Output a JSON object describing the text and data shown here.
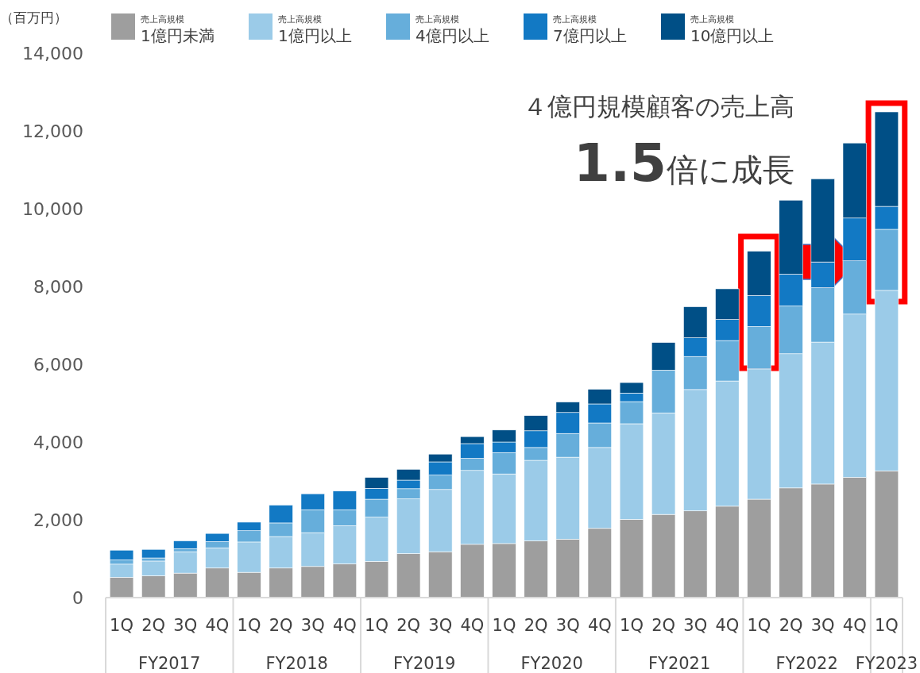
{
  "chart_data": {
    "type": "bar",
    "stacked": true,
    "legend": "top",
    "ylabel": "（百万円）",
    "categories": [
      "1Q",
      "2Q",
      "3Q",
      "4Q",
      "1Q",
      "2Q",
      "3Q",
      "4Q",
      "1Q",
      "2Q",
      "3Q",
      "4Q",
      "1Q",
      "2Q",
      "3Q",
      "4Q",
      "1Q",
      "2Q",
      "3Q",
      "4Q",
      "1Q",
      "2Q",
      "3Q",
      "4Q",
      "1Q"
    ],
    "ylim": [
      0,
      14000
    ],
    "yticks": [
      0,
      {
        "value": 2000,
        "label": "2,000"
      },
      {
        "value": 4000,
        "label": "4,000"
      },
      {
        "value": 6000,
        "label": "6,000"
      },
      {
        "value": 8000,
        "label": "8,000"
      },
      {
        "value": 10000,
        "label": "10,000"
      },
      {
        "value": 12000,
        "label": "12,000"
      },
      {
        "value": 14000,
        "label": "14,000"
      }
    ],
    "series": [
      {
        "name": "売上高規模 1億円未満",
        "color": "#9e9e9e",
        "values": [
          520,
          560,
          630,
          760,
          650,
          760,
          800,
          870,
          930,
          1130,
          1180,
          1370,
          1390,
          1460,
          1500,
          1780,
          2010,
          2140,
          2230,
          2350,
          2530,
          2820,
          2920,
          3090,
          3260
        ]
      },
      {
        "name": "売上高規模 1億円以上",
        "color": "#9bcbe8",
        "values": [
          340,
          380,
          550,
          520,
          780,
          810,
          870,
          980,
          1140,
          1410,
          1600,
          1900,
          1790,
          2070,
          2110,
          2080,
          2460,
          2610,
          3120,
          3220,
          3350,
          3450,
          3650,
          4200,
          4640
        ]
      },
      {
        "name": "売上高規模 4億円以上",
        "color": "#66aedb",
        "values": [
          110,
          80,
          80,
          160,
          290,
          350,
          590,
          410,
          460,
          260,
          370,
          310,
          550,
          330,
          610,
          630,
          570,
          1100,
          850,
          1040,
          1090,
          1230,
          1400,
          1370,
          1570
        ]
      },
      {
        "name": "売上高規模 7億円以上",
        "color": "#1279c4",
        "values": [
          250,
          220,
          200,
          210,
          220,
          460,
          410,
          480,
          280,
          220,
          340,
          380,
          270,
          430,
          540,
          490,
          220,
          0,
          480,
          540,
          800,
          820,
          660,
          1100,
          590
        ]
      },
      {
        "name": "売上高規模 10億円以上",
        "color": "#004f86",
        "values": [
          0,
          0,
          0,
          0,
          0,
          0,
          0,
          0,
          280,
          280,
          200,
          180,
          310,
          390,
          270,
          380,
          270,
          710,
          800,
          790,
          1140,
          1900,
          2140,
          1930,
          2430
        ]
      }
    ],
    "annotations": [
      "４億円規模顧客の売上高",
      "**1.5**倍に成長",
      "FY2017",
      "FY2018",
      "FY2019",
      "FY2020",
      "FY2021",
      "FY2022",
      "FY2023"
    ]
  }
}
